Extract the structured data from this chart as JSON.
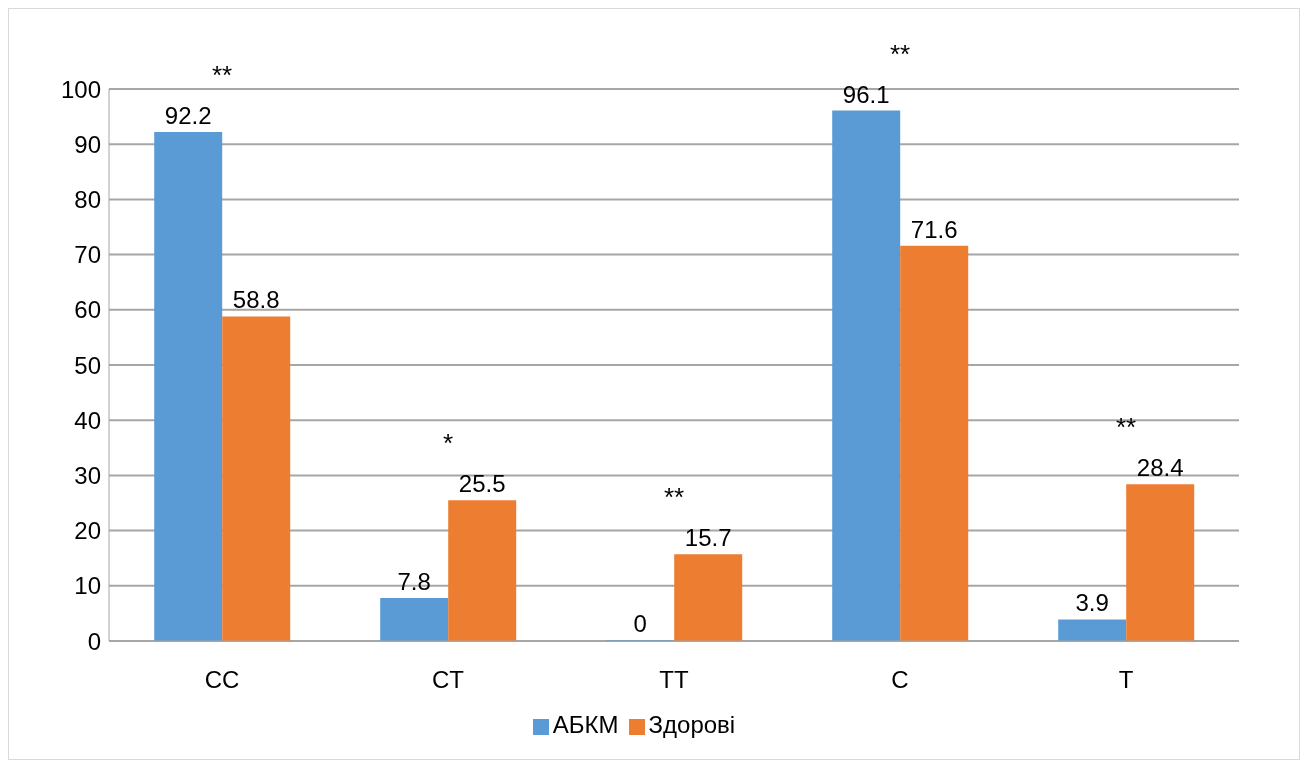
{
  "chart_data": {
    "type": "bar",
    "categories": [
      "CC",
      "CT",
      "TT",
      "C",
      "T"
    ],
    "series": [
      {
        "name": "АБКМ",
        "color": "#5b9bd5",
        "values": [
          92.2,
          7.8,
          0,
          96.1,
          3.9
        ]
      },
      {
        "name": "Здорові",
        "color": "#ed7d31",
        "values": [
          58.8,
          25.5,
          15.7,
          71.6,
          28.4
        ]
      }
    ],
    "ylim": [
      0,
      100
    ],
    "yticks": [
      0,
      10,
      20,
      30,
      40,
      50,
      60,
      70,
      80,
      90,
      100
    ],
    "grid": "y",
    "legend": "bottom",
    "data_labels": true,
    "annotations": [
      "**",
      "*",
      "**",
      "**",
      "**"
    ]
  }
}
